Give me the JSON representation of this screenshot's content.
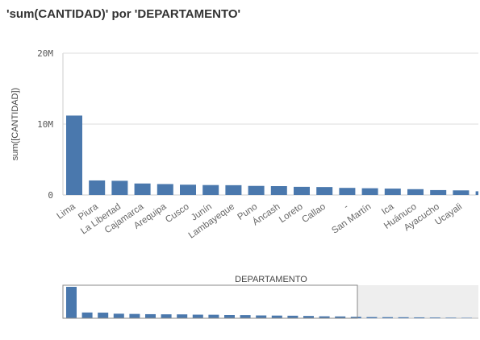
{
  "chart_data": {
    "type": "bar",
    "title": "'sum(CANTIDAD)' por 'DEPARTAMENTO'",
    "ylabel": "sum([CANTIDAD])",
    "xlabel": "",
    "ylim": [
      0,
      20000000
    ],
    "yticks": [
      {
        "value": 0,
        "label": "0"
      },
      {
        "value": 10000000,
        "label": "10M"
      },
      {
        "value": 20000000,
        "label": "20M"
      }
    ],
    "grid": true,
    "categories": [
      "Lima",
      "Piura",
      "La Libertad",
      "Cajamarca",
      "Arequipa",
      "Cusco",
      "Junín",
      "Lambayeque",
      "Puno",
      "Áncash",
      "Loreto",
      "Callao",
      "-",
      "San Martín",
      "Ica",
      "Huánuco",
      "Ayacucho",
      "Ucayali",
      ""
    ],
    "values": [
      11200000,
      2050000,
      2000000,
      1620000,
      1540000,
      1450000,
      1400000,
      1380000,
      1280000,
      1250000,
      1150000,
      1120000,
      1000000,
      950000,
      900000,
      820000,
      690000,
      650000,
      520000
    ],
    "navigator": {
      "title": "DEPARTAMENTO",
      "values": [
        11200000,
        2050000,
        2000000,
        1620000,
        1540000,
        1450000,
        1400000,
        1380000,
        1280000,
        1250000,
        1150000,
        1120000,
        1000000,
        950000,
        900000,
        820000,
        690000,
        650000,
        520000,
        420000,
        380000,
        350000,
        300000,
        250000,
        200000,
        150000
      ],
      "selected_count": 18
    },
    "colors": {
      "bar": "#4a78ad",
      "grid": "#dddddd",
      "navigator_shade": "#eeeeee"
    }
  }
}
